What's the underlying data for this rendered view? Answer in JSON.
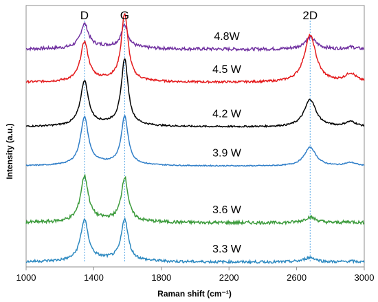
{
  "chart_data": {
    "type": "line",
    "xlabel": "Raman shift (cm⁻¹)",
    "ylabel": "Intensity (a.u.)",
    "xlim": [
      1000,
      3000
    ],
    "x_ticks": [
      1000,
      1400,
      1800,
      2200,
      2600,
      3000
    ],
    "x_tick_labels": [
      "1000",
      "1400",
      "1800",
      "2200",
      "2600",
      "3000"
    ],
    "grid": false,
    "y_ticks_shown": false,
    "peak_lines": [
      {
        "label": "D",
        "x": 1345
      },
      {
        "label": "G",
        "x": 1583
      },
      {
        "label": "2D",
        "x": 2680
      }
    ],
    "series": [
      {
        "name": "4.8W",
        "color": "#7030a0",
        "baseline": 0.832,
        "d": 0.09,
        "g": 0.084,
        "twod": 0.045,
        "noise": 0.006
      },
      {
        "name": "4.5 W",
        "color": "#e41a1c",
        "baseline": 0.705,
        "d": 0.147,
        "g": 0.254,
        "twod": 0.18,
        "noise": 0.004
      },
      {
        "name": "4.2 W",
        "color": "#000000",
        "baseline": 0.535,
        "d": 0.168,
        "g": 0.252,
        "twod": 0.105,
        "noise": 0.003
      },
      {
        "name": "3.9 W",
        "color": "#2f7ec8",
        "baseline": 0.385,
        "d": 0.18,
        "g": 0.182,
        "twod": 0.072,
        "noise": 0.002
      },
      {
        "name": "3.6 W",
        "color": "#3a9a3a",
        "baseline": 0.168,
        "d": 0.17,
        "g": 0.165,
        "twod": 0.022,
        "noise": 0.006
      },
      {
        "name": "3.3 W",
        "color": "#2b88c0",
        "baseline": 0.018,
        "d": 0.153,
        "g": 0.157,
        "twod": 0.018,
        "noise": 0.005
      }
    ]
  }
}
